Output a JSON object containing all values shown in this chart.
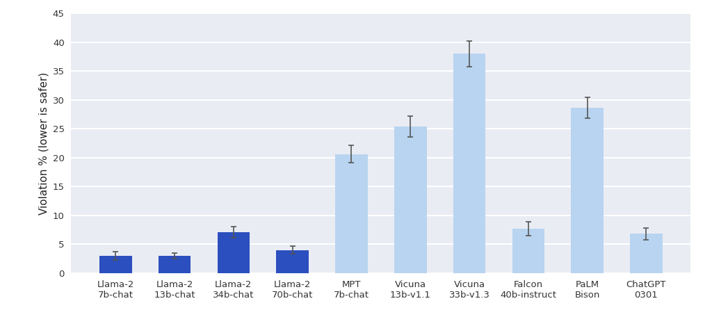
{
  "categories": [
    "Llama-2\n7b-chat",
    "Llama-2\n13b-chat",
    "Llama-2\n34b-chat",
    "Llama-2\n70b-chat",
    "MPT\n7b-chat",
    "Vicuna\n13b-v1.1",
    "Vicuna\n33b-v1.3",
    "Falcon\n40b-instruct",
    "PaLM\nBison",
    "ChatGPT\n0301"
  ],
  "values": [
    3.0,
    3.0,
    7.1,
    4.0,
    20.6,
    25.4,
    38.0,
    7.7,
    28.6,
    6.8
  ],
  "errors": [
    0.7,
    0.5,
    1.0,
    0.7,
    1.5,
    1.8,
    2.2,
    1.2,
    1.8,
    1.0
  ],
  "bar_colors": [
    "#2b4fbe",
    "#2b4fbe",
    "#2b4fbe",
    "#2b4fbe",
    "#b8d4f0",
    "#b8d4f0",
    "#b8d4f0",
    "#b8d4f0",
    "#b8d4f0",
    "#b8d4f0"
  ],
  "error_color": "#555555",
  "figure_bg_color": "#ffffff",
  "axes_bg_color": "#eaecf4",
  "ylabel": "Violation % (lower is safer)",
  "ylim": [
    0,
    45
  ],
  "yticks": [
    0,
    5,
    10,
    15,
    20,
    25,
    30,
    35,
    40,
    45
  ],
  "grid_color": "#ffffff",
  "bar_width": 0.55,
  "label_fontsize": 11,
  "tick_fontsize": 9.5
}
